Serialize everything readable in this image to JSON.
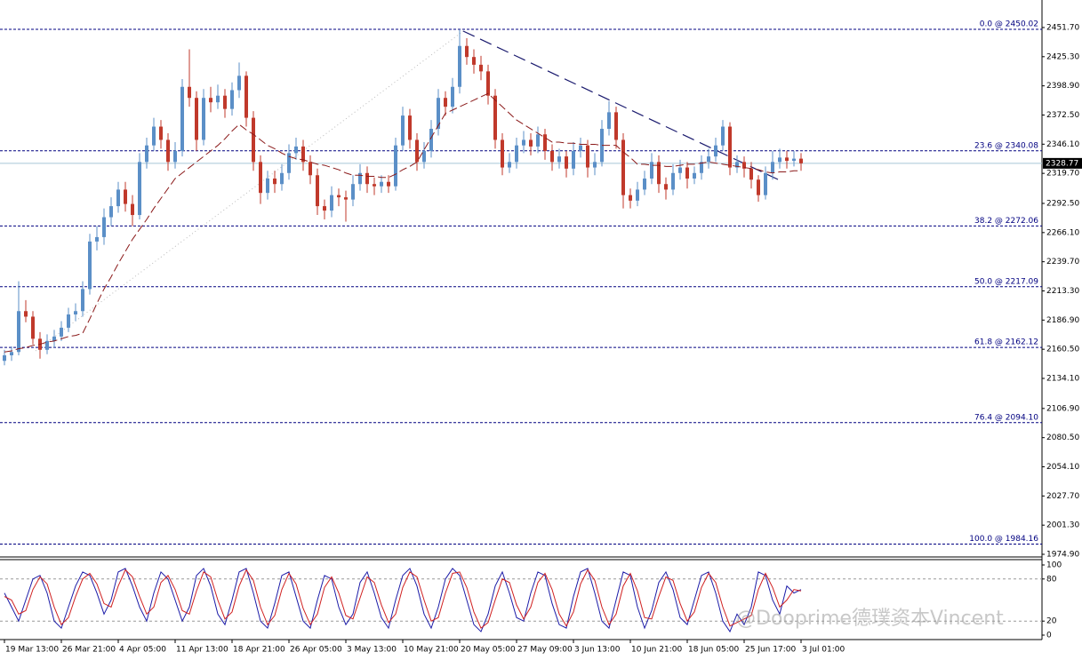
{
  "watermark": "@Dooprime德璞资本Vincent",
  "chart_data": [
    {
      "type": "candlestick",
      "categories": [
        "19 Mar 13:00",
        null,
        null,
        null,
        null,
        null,
        null,
        null,
        "26 Mar 21:00",
        null,
        null,
        null,
        null,
        null,
        null,
        null,
        "4 Apr 05:00",
        null,
        null,
        null,
        null,
        null,
        null,
        null,
        "11 Apr 13:00",
        null,
        null,
        null,
        null,
        null,
        null,
        null,
        "18 Apr 21:00",
        null,
        null,
        null,
        null,
        null,
        null,
        null,
        "26 Apr 05:00",
        null,
        null,
        null,
        null,
        null,
        null,
        null,
        "3 May 13:00",
        null,
        null,
        null,
        null,
        null,
        null,
        null,
        "10 May 21:00",
        null,
        null,
        null,
        null,
        null,
        null,
        null,
        "20 May 05:00",
        null,
        null,
        null,
        null,
        null,
        null,
        null,
        "27 May 09:00",
        null,
        null,
        null,
        null,
        null,
        null,
        null,
        "3 Jun 13:00",
        null,
        null,
        null,
        null,
        null,
        null,
        null,
        "10 Jun 21:00",
        null,
        null,
        null,
        null,
        null,
        null,
        null,
        "18 Jun 05:00",
        null,
        null,
        null,
        null,
        null,
        null,
        null,
        "25 Jun 17:00",
        null,
        null,
        null,
        null,
        null,
        null,
        null,
        "3 Jul 01:00"
      ],
      "candles": [
        [
          2150,
          2160,
          2146,
          2155
        ],
        [
          2155,
          2163,
          2150,
          2158
        ],
        [
          2158,
          2222,
          2155,
          2195
        ],
        [
          2195,
          2205,
          2185,
          2190
        ],
        [
          2190,
          2195,
          2165,
          2170
        ],
        [
          2170,
          2176,
          2152,
          2160
        ],
        [
          2160,
          2174,
          2156,
          2168
        ],
        [
          2168,
          2178,
          2162,
          2172
        ],
        [
          2172,
          2186,
          2168,
          2180
        ],
        [
          2180,
          2198,
          2176,
          2192
        ],
        [
          2192,
          2202,
          2186,
          2195
        ],
        [
          2195,
          2222,
          2190,
          2215
        ],
        [
          2215,
          2265,
          2210,
          2258
        ],
        [
          2258,
          2272,
          2250,
          2262
        ],
        [
          2262,
          2288,
          2255,
          2280
        ],
        [
          2280,
          2298,
          2272,
          2290
        ],
        [
          2290,
          2312,
          2284,
          2305
        ],
        [
          2305,
          2312,
          2285,
          2292
        ],
        [
          2292,
          2300,
          2272,
          2282
        ],
        [
          2282,
          2338,
          2278,
          2330
        ],
        [
          2330,
          2352,
          2324,
          2345
        ],
        [
          2345,
          2370,
          2340,
          2362
        ],
        [
          2362,
          2368,
          2342,
          2350
        ],
        [
          2350,
          2356,
          2322,
          2330
        ],
        [
          2330,
          2348,
          2324,
          2340
        ],
        [
          2340,
          2405,
          2335,
          2398
        ],
        [
          2398,
          2432,
          2380,
          2388
        ],
        [
          2388,
          2394,
          2340,
          2350
        ],
        [
          2350,
          2396,
          2345,
          2388
        ],
        [
          2388,
          2398,
          2375,
          2384
        ],
        [
          2384,
          2400,
          2378,
          2390
        ],
        [
          2390,
          2396,
          2370,
          2378
        ],
        [
          2378,
          2402,
          2372,
          2395
        ],
        [
          2395,
          2420,
          2388,
          2408
        ],
        [
          2408,
          2412,
          2362,
          2370
        ],
        [
          2370,
          2376,
          2322,
          2330
        ],
        [
          2330,
          2336,
          2292,
          2302
        ],
        [
          2302,
          2322,
          2296,
          2315
        ],
        [
          2315,
          2322,
          2302,
          2310
        ],
        [
          2310,
          2328,
          2304,
          2320
        ],
        [
          2320,
          2346,
          2314,
          2338
        ],
        [
          2338,
          2352,
          2332,
          2344
        ],
        [
          2344,
          2350,
          2322,
          2330
        ],
        [
          2330,
          2336,
          2310,
          2318
        ],
        [
          2318,
          2324,
          2282,
          2290
        ],
        [
          2290,
          2296,
          2278,
          2286
        ],
        [
          2286,
          2308,
          2280,
          2300
        ],
        [
          2300,
          2306,
          2290,
          2298
        ],
        [
          2298,
          2304,
          2276,
          2296
        ],
        [
          2296,
          2318,
          2290,
          2310
        ],
        [
          2310,
          2328,
          2304,
          2320
        ],
        [
          2320,
          2326,
          2302,
          2310
        ],
        [
          2310,
          2316,
          2300,
          2308
        ],
        [
          2308,
          2318,
          2302,
          2312
        ],
        [
          2312,
          2318,
          2302,
          2308
        ],
        [
          2308,
          2352,
          2304,
          2345
        ],
        [
          2345,
          2380,
          2340,
          2372
        ],
        [
          2372,
          2378,
          2342,
          2350
        ],
        [
          2350,
          2356,
          2322,
          2330
        ],
        [
          2330,
          2348,
          2324,
          2340
        ],
        [
          2340,
          2368,
          2334,
          2360
        ],
        [
          2360,
          2396,
          2354,
          2388
        ],
        [
          2388,
          2394,
          2372,
          2380
        ],
        [
          2380,
          2406,
          2374,
          2398
        ],
        [
          2398,
          2450,
          2392,
          2435
        ],
        [
          2435,
          2442,
          2418,
          2425
        ],
        [
          2425,
          2432,
          2410,
          2418
        ],
        [
          2418,
          2426,
          2404,
          2412
        ],
        [
          2412,
          2418,
          2382,
          2390
        ],
        [
          2390,
          2396,
          2342,
          2350
        ],
        [
          2350,
          2356,
          2318,
          2325
        ],
        [
          2325,
          2338,
          2320,
          2330
        ],
        [
          2330,
          2352,
          2324,
          2345
        ],
        [
          2345,
          2358,
          2338,
          2350
        ],
        [
          2350,
          2356,
          2336,
          2344
        ],
        [
          2344,
          2362,
          2338,
          2355
        ],
        [
          2355,
          2360,
          2332,
          2340
        ],
        [
          2340,
          2346,
          2322,
          2330
        ],
        [
          2330,
          2342,
          2324,
          2335
        ],
        [
          2335,
          2340,
          2316,
          2324
        ],
        [
          2324,
          2348,
          2318,
          2340
        ],
        [
          2340,
          2352,
          2334,
          2345
        ],
        [
          2345,
          2350,
          2316,
          2325
        ],
        [
          2325,
          2338,
          2318,
          2330
        ],
        [
          2330,
          2368,
          2326,
          2360
        ],
        [
          2360,
          2385,
          2354,
          2375
        ],
        [
          2375,
          2380,
          2342,
          2350
        ],
        [
          2350,
          2356,
          2288,
          2300
        ],
        [
          2300,
          2306,
          2288,
          2295
        ],
        [
          2295,
          2312,
          2290,
          2305
        ],
        [
          2305,
          2322,
          2300,
          2315
        ],
        [
          2315,
          2338,
          2310,
          2330
        ],
        [
          2330,
          2336,
          2302,
          2310
        ],
        [
          2310,
          2316,
          2296,
          2305
        ],
        [
          2305,
          2328,
          2300,
          2320
        ],
        [
          2320,
          2332,
          2314,
          2325
        ],
        [
          2325,
          2330,
          2306,
          2315
        ],
        [
          2315,
          2326,
          2310,
          2320
        ],
        [
          2320,
          2336,
          2314,
          2330
        ],
        [
          2330,
          2342,
          2324,
          2335
        ],
        [
          2335,
          2352,
          2330,
          2345
        ],
        [
          2345,
          2368,
          2340,
          2362
        ],
        [
          2362,
          2366,
          2318,
          2325
        ],
        [
          2325,
          2336,
          2320,
          2330
        ],
        [
          2330,
          2335,
          2316,
          2324
        ],
        [
          2324,
          2330,
          2306,
          2314
        ],
        [
          2314,
          2318,
          2294,
          2300
        ],
        [
          2300,
          2326,
          2296,
          2320
        ],
        [
          2320,
          2340,
          2314,
          2330
        ],
        [
          2330,
          2342,
          2324,
          2334
        ],
        [
          2334,
          2340,
          2324,
          2331
        ],
        [
          2331,
          2340,
          2326,
          2333
        ],
        [
          2333,
          2338,
          2322,
          2328.77
        ]
      ],
      "up_color": "#5b8fc7",
      "down_color": "#c0392b",
      "ma": {
        "color": "#8b1a1a",
        "values": [
          2158,
          2159,
          2161,
          2162,
          2164,
          2165,
          2167,
          2168,
          2170,
          2172,
          2173,
          2175,
          2188,
          2202,
          2215,
          2226,
          2238,
          2249,
          2260,
          2269,
          2278,
          2288,
          2297,
          2306,
          2315,
          2320,
          2325,
          2330,
          2335,
          2340,
          2345,
          2351,
          2358,
          2364,
          2359,
          2355,
          2350,
          2345,
          2342,
          2338,
          2335,
          2333,
          2332,
          2330,
          2328,
          2327,
          2325,
          2323,
          2320,
          2318,
          2318,
          2317,
          2317,
          2316,
          2316,
          2319,
          2323,
          2326,
          2330,
          2341,
          2352,
          2363,
          2374,
          2377,
          2380,
          2383,
          2386,
          2389,
          2392,
          2386,
          2380,
          2374,
          2368,
          2364,
          2360,
          2356,
          2352,
          2348,
          2348,
          2347,
          2347,
          2346,
          2346,
          2346,
          2345,
          2345,
          2345,
          2339,
          2334,
          2328,
          2328,
          2327,
          2327,
          2326,
          2326,
          2327,
          2328,
          2328,
          2329,
          2330,
          2329,
          2328,
          2327,
          2326,
          2325,
          2324,
          2323,
          2321,
          2320,
          2321,
          2321,
          2322,
          2322
        ]
      },
      "ylim": [
        1972.5,
        2476.6
      ],
      "yticks": [
        {
          "value": 2451.7,
          "label": "2451.70"
        },
        {
          "value": 2425.3,
          "label": "2425.30"
        },
        {
          "value": 2398.9,
          "label": "2398.90"
        },
        {
          "value": 2372.5,
          "label": "2372.50"
        },
        {
          "value": 2346.1,
          "label": "2346.10"
        },
        {
          "value": 2319.7,
          "label": "2319.70"
        },
        {
          "value": 2292.5,
          "label": "2292.50"
        },
        {
          "value": 2266.1,
          "label": "2266.10"
        },
        {
          "value": 2239.7,
          "label": "2239.70"
        },
        {
          "value": 2213.3,
          "label": "2213.30"
        },
        {
          "value": 2186.9,
          "label": "2186.90"
        },
        {
          "value": 2160.5,
          "label": "2160.50"
        },
        {
          "value": 2134.1,
          "label": "2134.10"
        },
        {
          "value": 2106.9,
          "label": "2106.90"
        },
        {
          "value": 2080.5,
          "label": "2080.50"
        },
        {
          "value": 2054.1,
          "label": "2054.10"
        },
        {
          "value": 2027.7,
          "label": "2027.70"
        },
        {
          "value": 2001.3,
          "label": "2001.30"
        },
        {
          "value": 1974.9,
          "label": "1974.90"
        }
      ],
      "levels": [
        {
          "value": 2450.02,
          "label": "0.0 @ 2450.02"
        },
        {
          "value": 2340.08,
          "label": "23.6 @ 2340.08"
        },
        {
          "value": 2272.06,
          "label": "38.2 @ 2272.06"
        },
        {
          "value": 2217.09,
          "label": "50.0 @ 2217.09"
        },
        {
          "value": 2162.12,
          "label": "61.8 @ 2162.12"
        },
        {
          "value": 2094.1,
          "label": "76.4 @ 2094.10"
        },
        {
          "value": 1984.16,
          "label": "100.0 @ 1984.16"
        }
      ],
      "last_price": 2328.77
    },
    {
      "type": "line",
      "ylim": [
        0,
        100
      ],
      "yticks": [
        100,
        80,
        20,
        0
      ],
      "levels": [
        80,
        20
      ],
      "series": [
        {
          "color": "#1c1ca8",
          "values": [
            60,
            40,
            20,
            50,
            80,
            85,
            60,
            20,
            10,
            40,
            70,
            90,
            85,
            60,
            30,
            50,
            90,
            95,
            70,
            40,
            20,
            60,
            90,
            80,
            50,
            20,
            40,
            85,
            95,
            70,
            30,
            15,
            50,
            90,
            95,
            60,
            20,
            10,
            45,
            85,
            90,
            55,
            20,
            10,
            50,
            85,
            80,
            40,
            15,
            30,
            75,
            90,
            60,
            25,
            10,
            50,
            85,
            95,
            70,
            30,
            10,
            40,
            80,
            95,
            85,
            50,
            15,
            5,
            30,
            70,
            90,
            60,
            25,
            20,
            60,
            90,
            85,
            45,
            15,
            10,
            55,
            90,
            95,
            60,
            20,
            10,
            50,
            90,
            85,
            40,
            10,
            35,
            75,
            90,
            65,
            25,
            15,
            50,
            85,
            90,
            60,
            20,
            5,
            30,
            15,
            40,
            90,
            85,
            50,
            30,
            70,
            60,
            65
          ]
        },
        {
          "color": "#d02020",
          "values": [
            55,
            50,
            30,
            35,
            65,
            83,
            73,
            40,
            15,
            25,
            55,
            80,
            88,
            73,
            45,
            40,
            70,
            93,
            83,
            55,
            30,
            40,
            75,
            85,
            65,
            35,
            30,
            63,
            90,
            83,
            50,
            23,
            33,
            70,
            93,
            78,
            40,
            15,
            28,
            65,
            88,
            73,
            38,
            15,
            30,
            68,
            83,
            60,
            28,
            23,
            53,
            83,
            75,
            43,
            18,
            30,
            68,
            90,
            83,
            50,
            20,
            25,
            60,
            88,
            90,
            68,
            33,
            10,
            18,
            50,
            80,
            75,
            43,
            23,
            40,
            75,
            88,
            65,
            30,
            13,
            33,
            73,
            93,
            78,
            40,
            15,
            30,
            70,
            88,
            63,
            25,
            23,
            55,
            83,
            78,
            45,
            20,
            33,
            68,
            88,
            75,
            40,
            13,
            18,
            23,
            28,
            65,
            88,
            68,
            40,
            50,
            65,
            63
          ]
        }
      ]
    }
  ]
}
